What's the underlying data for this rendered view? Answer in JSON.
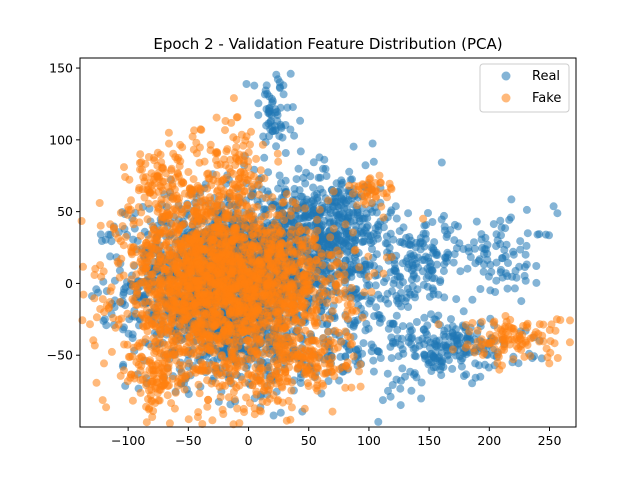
{
  "chart_data": {
    "type": "scatter",
    "title": "Epoch 2 - Validation Feature Distribution (PCA)",
    "xlabel": "",
    "ylabel": "",
    "xlim": [
      -140,
      272
    ],
    "ylim": [
      -100,
      157
    ],
    "xticks": [
      -100,
      -50,
      0,
      50,
      100,
      150,
      200,
      250
    ],
    "yticks": [
      -50,
      0,
      50,
      100,
      150
    ],
    "xtick_labels": [
      "−100",
      "−50",
      "0",
      "50",
      "100",
      "150",
      "200",
      "250"
    ],
    "ytick_labels": [
      "−50",
      "0",
      "50",
      "100",
      "150"
    ],
    "grid": false,
    "legend_position": "top-right",
    "series": [
      {
        "name": "Real",
        "color": "#1f77b4",
        "alpha": 0.55,
        "clusters": [
          {
            "cx": -25,
            "cy": 0,
            "sx": 38,
            "sy": 30,
            "n": 1400
          },
          {
            "cx": 40,
            "cy": 20,
            "sx": 38,
            "sy": 25,
            "n": 700
          },
          {
            "cx": 70,
            "cy": 45,
            "sx": 25,
            "sy": 18,
            "n": 250
          },
          {
            "cx": 20,
            "cy": 115,
            "sx": 10,
            "sy": 15,
            "n": 60
          },
          {
            "cx": 150,
            "cy": 15,
            "sx": 20,
            "sy": 15,
            "n": 120
          },
          {
            "cx": 170,
            "cy": -45,
            "sx": 30,
            "sy": 10,
            "n": 180
          },
          {
            "cx": 215,
            "cy": 20,
            "sx": 20,
            "sy": 15,
            "n": 70
          },
          {
            "cx": 120,
            "cy": -30,
            "sx": 15,
            "sy": 25,
            "n": 90
          },
          {
            "cx": 30,
            "cy": -50,
            "sx": 40,
            "sy": 15,
            "n": 200
          }
        ],
        "points": [
          [
            35,
            146
          ],
          [
            -40,
            -72
          ],
          [
            -103,
            38
          ],
          [
            232,
            35
          ],
          [
            240,
            34
          ],
          [
            130,
            -65
          ]
        ]
      },
      {
        "name": "Fake",
        "color": "#ff7f0e",
        "alpha": 0.55,
        "clusters": [
          {
            "cx": -35,
            "cy": 0,
            "sx": 35,
            "sy": 35,
            "n": 1700
          },
          {
            "cx": 30,
            "cy": 0,
            "sx": 30,
            "sy": 25,
            "n": 500
          },
          {
            "cx": -15,
            "cy": 85,
            "sx": 15,
            "sy": 15,
            "n": 80
          },
          {
            "cx": -75,
            "cy": 75,
            "sx": 12,
            "sy": 10,
            "n": 70
          },
          {
            "cx": 50,
            "cy": -55,
            "sx": 20,
            "sy": 10,
            "n": 120
          },
          {
            "cx": 220,
            "cy": -38,
            "sx": 25,
            "sy": 8,
            "n": 110
          },
          {
            "cx": 100,
            "cy": 65,
            "sx": 10,
            "sy": 5,
            "n": 40
          },
          {
            "cx": -75,
            "cy": -65,
            "sx": 12,
            "sy": 12,
            "n": 80
          },
          {
            "cx": 10,
            "cy": -70,
            "sx": 15,
            "sy": 10,
            "n": 60
          }
        ],
        "points": [
          [
            -120,
            -20
          ],
          [
            115,
            60
          ],
          [
            145,
            45
          ],
          [
            -80,
            -82
          ],
          [
            5,
            -87
          ],
          [
            255,
            -33
          ],
          [
            -90,
            90
          ]
        ]
      }
    ]
  }
}
